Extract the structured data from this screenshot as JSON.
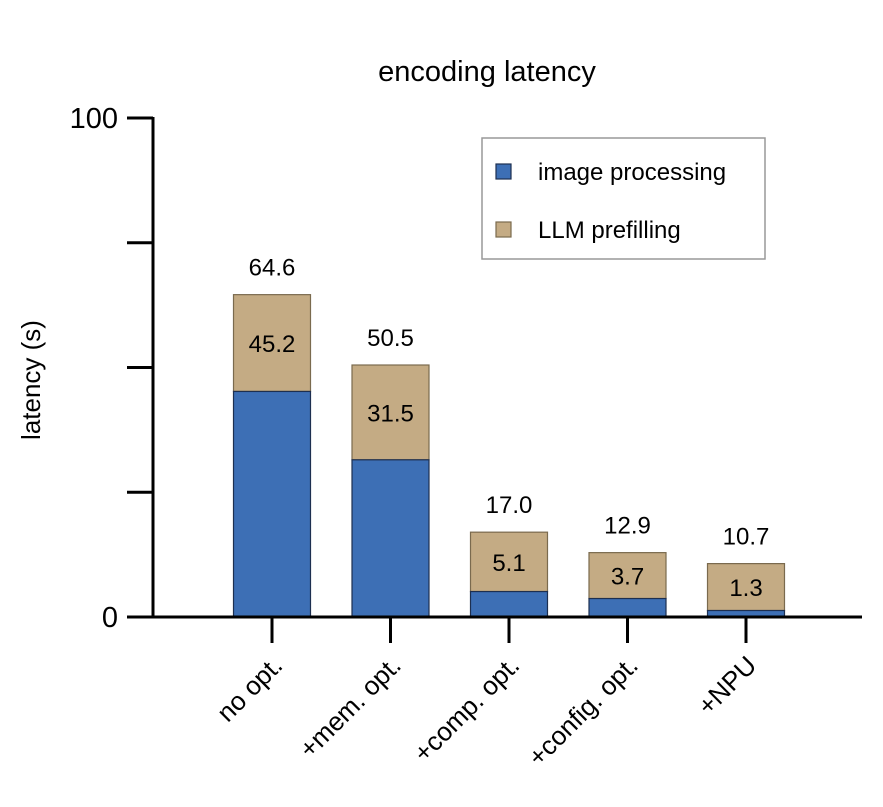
{
  "chart_data": {
    "type": "bar",
    "stacked": true,
    "title": "encoding latency",
    "xlabel": "",
    "ylabel": "latency (s)",
    "ylim": [
      0,
      100
    ],
    "yticks": [
      0,
      25,
      50,
      75,
      100
    ],
    "ytick_labels": [
      "0",
      "",
      "",
      "",
      "100"
    ],
    "categories": [
      "no opt.",
      "+mem. opt.",
      "+comp. opt.",
      "+config. opt.",
      "+NPU"
    ],
    "series": [
      {
        "name": "image processing",
        "color": "#3d6fb5",
        "values": [
          45.2,
          31.5,
          5.1,
          3.7,
          1.3
        ]
      },
      {
        "name": "LLM prefilling",
        "color": "#c4ab84",
        "values": [
          19.4,
          19.0,
          11.9,
          9.2,
          9.4
        ]
      }
    ],
    "inner_labels": [
      "45.2",
      "31.5",
      "5.1",
      "3.7",
      "1.3"
    ],
    "total_labels": [
      "64.6",
      "50.5",
      "17.0",
      "12.9",
      "10.7"
    ],
    "legend": {
      "placement": "top-right",
      "entries": [
        "image processing",
        "LLM prefilling"
      ]
    }
  }
}
